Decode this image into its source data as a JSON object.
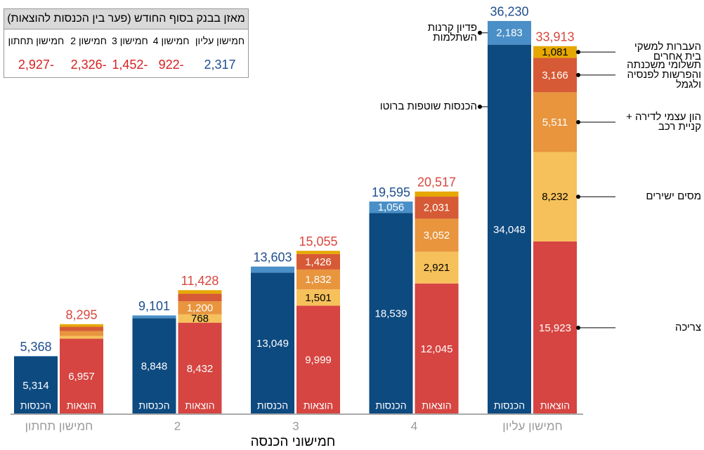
{
  "chart_data": {
    "type": "stacked_bar",
    "x_label": "חמישוני הכנסה",
    "categories": [
      "חמישון תחתון",
      "2",
      "3",
      "4",
      "חמישון עליון"
    ],
    "ylim": [
      0,
      37000
    ],
    "stacks": [
      {
        "name": "הכנסות",
        "total_color": "#1f4e8c",
        "totals": [
          5368,
          9101,
          13603,
          19595,
          36230
        ],
        "total_labels": [
          "5,368",
          "9,101",
          "13,603",
          "19,595",
          "36,230"
        ],
        "series": [
          {
            "name": "הכנסות שוטפות ברוטו",
            "color": "#0d4a80",
            "label_color": "#ffffff",
            "values": [
              5314,
              8848,
              13049,
              18539,
              34048
            ],
            "value_labels": [
              "5,314",
              "8,848",
              "13,049",
              "18,539",
              "34,048"
            ]
          },
          {
            "name": "פדיון קרנות השתלמות",
            "color": "#4a8fc7",
            "label_color": "#ffffff",
            "values": [
              54,
              253,
              554,
              1056,
              2183
            ],
            "value_labels": [
              null,
              null,
              null,
              "1,056",
              "2,183"
            ]
          }
        ]
      },
      {
        "name": "הוצאות",
        "total_color": "#d9463e",
        "totals": [
          8295,
          11428,
          15055,
          20517,
          33913
        ],
        "total_labels": [
          "8,295",
          "11,428",
          "15,055",
          "20,517",
          "33,913"
        ],
        "series": [
          {
            "name": "צריכה",
            "color": "#d64541",
            "label_color": "#ffffff",
            "values": [
              6957,
              8432,
              9999,
              12045,
              15923
            ],
            "value_labels": [
              "6,957",
              "8,432",
              "9,999",
              "12,045",
              "15,923"
            ]
          },
          {
            "name": "מסים ישירים",
            "color": "#f6c15a",
            "label_color": "#000000",
            "values": [
              250,
              768,
              1501,
              2921,
              8232
            ],
            "value_labels": [
              null,
              "768",
              "1,501",
              "2,921",
              "8,232"
            ]
          },
          {
            "name": "הון עצמי לדירה + קניית רכב",
            "color": "#e8953e",
            "label_color": "#ffffff",
            "values": [
              450,
              1200,
              1832,
              3052,
              5511
            ],
            "value_labels": [
              null,
              "1,200",
              "1,832",
              "3,052",
              "5,511"
            ]
          },
          {
            "name": "תשלומי משכנתה והפרשות לפנסיה ולגמל",
            "color": "#d65a35",
            "label_color": "#ffffff",
            "values": [
              400,
              700,
              1426,
              2031,
              3166
            ],
            "value_labels": [
              null,
              null,
              "1,426",
              "2,031",
              "3,166"
            ]
          },
          {
            "name": "העברות למשקי בית אחרים",
            "color": "#e6a800",
            "label_color": "#000000",
            "values": [
              238,
              328,
              297,
              468,
              1081
            ],
            "value_labels": [
              null,
              null,
              null,
              null,
              "1,081"
            ]
          }
        ]
      }
    ]
  },
  "balance_table": {
    "title": "מאזן בבנק בסוף החודש (פער בין הכנסות להוצאות)",
    "columns": [
      "חמישון עליון",
      "חמישון 4",
      "חמישון 3",
      "חמישון 2",
      "חמישון תחתון"
    ],
    "cells": [
      "2,317",
      "-922",
      "-1,452",
      "-2,326",
      "-2,927"
    ]
  }
}
